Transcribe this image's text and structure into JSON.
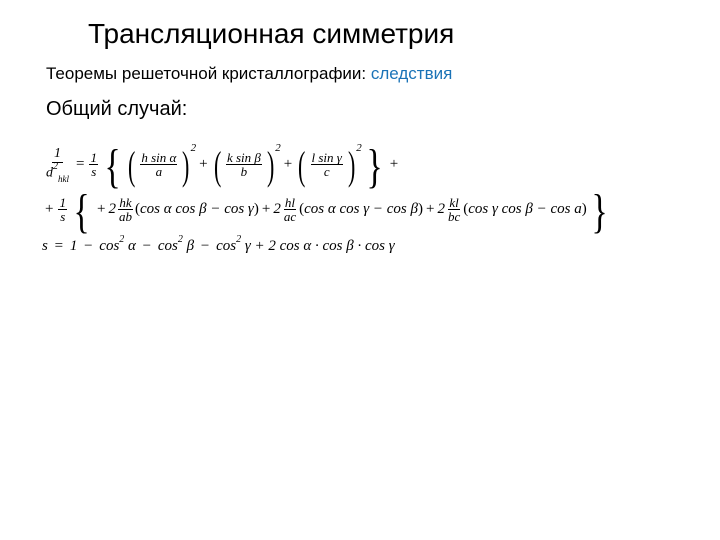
{
  "colors": {
    "blue": "#1a73b7",
    "black": "#000000",
    "bg": "#ffffff"
  },
  "fonts": {
    "ui": "Arial",
    "math": "Times New Roman"
  },
  "title": "Трансляционная симметрия",
  "theorem_black": "Теоремы решеточной кристаллографии:",
  "theorem_blue": " следствия",
  "subtitle": "Общий случай:",
  "eq": {
    "lhs_num": "1",
    "lhs_den_base": "d",
    "lhs_den_sub": "hkl",
    "lhs_den_sup": "2",
    "one_over_s_num": "1",
    "one_over_s_den": "s",
    "term1_num": "h sin α",
    "term1_den": "a",
    "term2_num": "k sin β",
    "term2_den": "b",
    "term3_num": "l sin γ",
    "term3_den": "c",
    "sq": "2",
    "two": "2",
    "t4_num": "hk",
    "t4_den": "ab",
    "t4_expr": "cos α cos β − cos γ",
    "t5_num": "hl",
    "t5_den": "ac",
    "t5_expr": "cos α cos γ − cos β",
    "t6_num": "kl",
    "t6_den": "bc",
    "t6_expr": "cos γ cos β − cos a",
    "s_def": "s = 1 − cos",
    "alpha": "α",
    "beta": "β",
    "gamma": "γ",
    "final": " + 2 cos α · cos β · cos γ"
  }
}
